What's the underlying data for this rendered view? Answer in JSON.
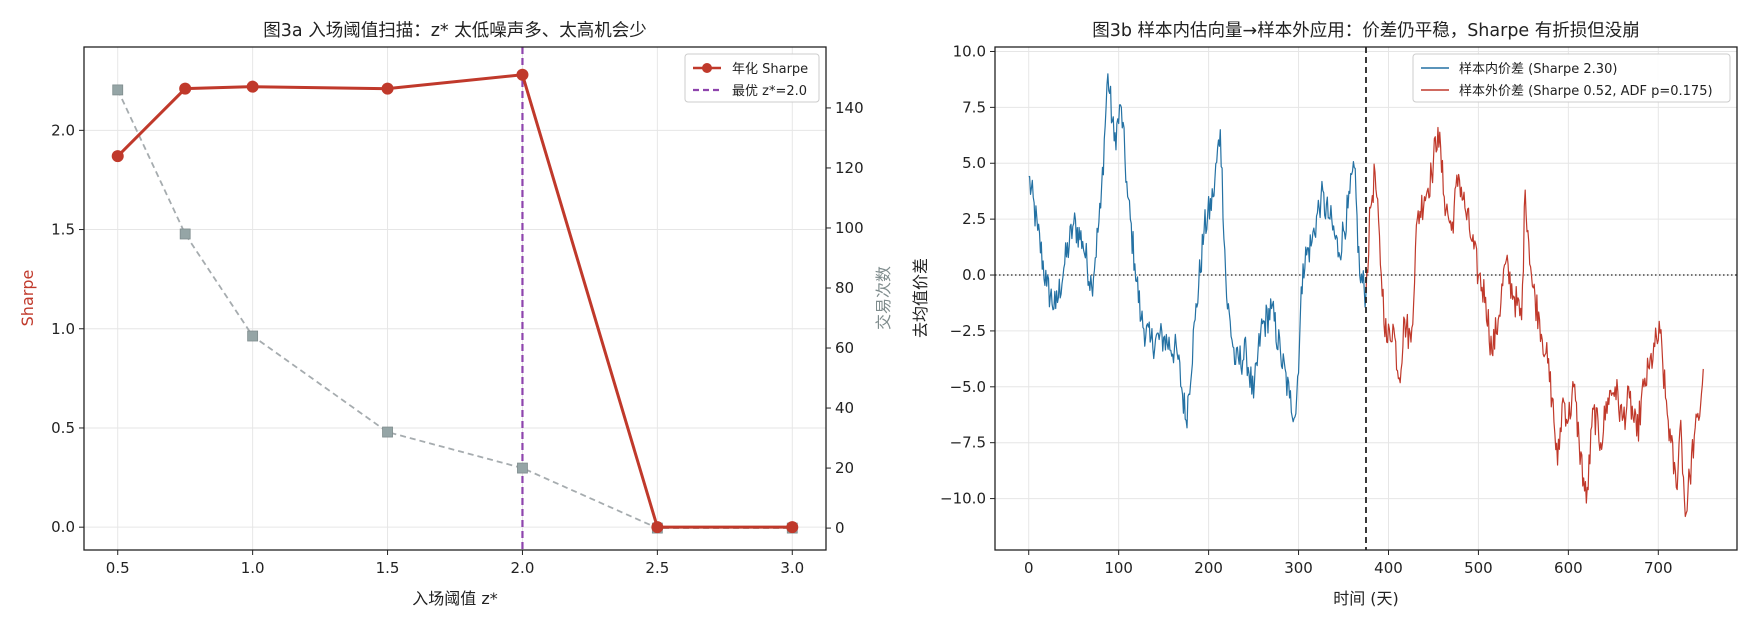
{
  "chart_data": [
    {
      "type": "line",
      "title": "图3a  入场阈值扫描：z* 太低噪声多、太高机会少",
      "xlabel": "入场阈值 z*",
      "ylabel": "Sharpe",
      "y2label": "交易次数",
      "x": [
        0.5,
        0.75,
        1.0,
        1.5,
        2.0,
        2.5,
        3.0
      ],
      "xticks": [
        "0.5",
        "1.0",
        "1.5",
        "2.0",
        "2.5",
        "3.0"
      ],
      "xlim": [
        0.375,
        3.125
      ],
      "ylim": [
        -0.115,
        2.42
      ],
      "yticks": [
        "0.0",
        "0.5",
        "1.0",
        "1.5",
        "2.0"
      ],
      "y2lim": [
        -7.3,
        160.3
      ],
      "y2ticks": [
        "0",
        "20",
        "40",
        "60",
        "80",
        "100",
        "120",
        "140"
      ],
      "grid": true,
      "legend_position": "top-right",
      "series": [
        {
          "name": "年化 Sharpe",
          "axis": "left",
          "color": "#c0392b",
          "marker": "circle",
          "values": [
            1.87,
            2.21,
            2.22,
            2.21,
            2.28,
            0.0,
            0.0
          ]
        },
        {
          "name": "",
          "axis": "right",
          "color": "#95a5a6",
          "marker": "square",
          "dashed": true,
          "values": [
            146,
            98,
            64,
            32,
            20,
            0,
            0
          ]
        }
      ],
      "vline": {
        "x": 2.0,
        "color": "#8e44ad",
        "label": "最优 z*=2.0"
      }
    },
    {
      "type": "line",
      "title": "图3b  样本内估向量→样本外应用：价差仍平稳，Sharpe 有折损但没崩",
      "xlabel": "时间 (天)",
      "ylabel": "去均值价差",
      "xlim": [
        -37.5,
        787.5
      ],
      "xticks": [
        "0",
        "100",
        "200",
        "300",
        "400",
        "500",
        "600",
        "700"
      ],
      "ylim": [
        -12.3,
        10.2
      ],
      "yticks": [
        "−10.0",
        "−7.5",
        "−5.0",
        "−2.5",
        "0.0",
        "2.5",
        "5.0",
        "7.5",
        "10.0"
      ],
      "grid": true,
      "legend_position": "top-right",
      "split_at": 375,
      "zero_line": true,
      "series": [
        {
          "name": "样本内价差 (Sharpe 2.30)",
          "color": "#2471a3",
          "keypoints": [
            [
              0,
              4.4
            ],
            [
              10,
              2.0
            ],
            [
              20,
              -0.5
            ],
            [
              30,
              -1.5
            ],
            [
              40,
              0.5
            ],
            [
              50,
              2.3
            ],
            [
              60,
              1.5
            ],
            [
              70,
              -0.5
            ],
            [
              80,
              3.0
            ],
            [
              88,
              9.0
            ],
            [
              95,
              6.0
            ],
            [
              103,
              7.5
            ],
            [
              110,
              3.5
            ],
            [
              118,
              0.5
            ],
            [
              125,
              -2.0
            ],
            [
              135,
              -3.0
            ],
            [
              150,
              -2.8
            ],
            [
              165,
              -3.5
            ],
            [
              175,
              -6.5
            ],
            [
              185,
              -2.0
            ],
            [
              195,
              2.0
            ],
            [
              205,
              3.5
            ],
            [
              213,
              6.5
            ],
            [
              220,
              -1.0
            ],
            [
              230,
              -4.0
            ],
            [
              242,
              -3.5
            ],
            [
              250,
              -5.5
            ],
            [
              258,
              -2.5
            ],
            [
              270,
              -1.5
            ],
            [
              280,
              -3.5
            ],
            [
              290,
              -5.5
            ],
            [
              297,
              -6.2
            ],
            [
              305,
              0.5
            ],
            [
              315,
              1.5
            ],
            [
              325,
              3.5
            ],
            [
              335,
              2.5
            ],
            [
              345,
              1.0
            ],
            [
              355,
              3.0
            ],
            [
              362,
              4.8
            ],
            [
              368,
              0.0
            ],
            [
              375,
              -0.8
            ]
          ]
        },
        {
          "name": "样本外价差 (Sharpe 0.52, ADF p=0.175)",
          "color": "#c0392b",
          "keypoints": [
            [
              375,
              -0.8
            ],
            [
              380,
              3.0
            ],
            [
              385,
              4.6
            ],
            [
              392,
              0.0
            ],
            [
              398,
              -3.0
            ],
            [
              405,
              -2.2
            ],
            [
              412,
              -4.6
            ],
            [
              418,
              -2.0
            ],
            [
              425,
              -3.0
            ],
            [
              432,
              2.5
            ],
            [
              440,
              3.5
            ],
            [
              448,
              4.5
            ],
            [
              455,
              6.6
            ],
            [
              462,
              3.5
            ],
            [
              470,
              2.0
            ],
            [
              478,
              4.5
            ],
            [
              485,
              3.0
            ],
            [
              493,
              1.5
            ],
            [
              500,
              0.0
            ],
            [
              508,
              -1.0
            ],
            [
              515,
              -3.5
            ],
            [
              522,
              -2.0
            ],
            [
              530,
              0.5
            ],
            [
              540,
              -1.0
            ],
            [
              548,
              -2.0
            ],
            [
              552,
              3.8
            ],
            [
              560,
              -0.5
            ],
            [
              568,
              -2.0
            ],
            [
              575,
              -3.5
            ],
            [
              582,
              -5.5
            ],
            [
              588,
              -8.5
            ],
            [
              594,
              -5.5
            ],
            [
              600,
              -6.5
            ],
            [
              606,
              -5.0
            ],
            [
              612,
              -7.5
            ],
            [
              620,
              -10.2
            ],
            [
              628,
              -6.0
            ],
            [
              636,
              -7.5
            ],
            [
              644,
              -5.5
            ],
            [
              652,
              -5.0
            ],
            [
              660,
              -6.5
            ],
            [
              668,
              -5.5
            ],
            [
              676,
              -7.2
            ],
            [
              684,
              -5.0
            ],
            [
              690,
              -4.2
            ],
            [
              696,
              -3.2
            ],
            [
              702,
              -2.6
            ],
            [
              708,
              -5.5
            ],
            [
              714,
              -7.5
            ],
            [
              720,
              -9.5
            ],
            [
              725,
              -6.5
            ],
            [
              730,
              -10.8
            ],
            [
              735,
              -9.0
            ],
            [
              740,
              -7.2
            ],
            [
              745,
              -6.5
            ],
            [
              750,
              -4.2
            ]
          ]
        }
      ]
    }
  ]
}
